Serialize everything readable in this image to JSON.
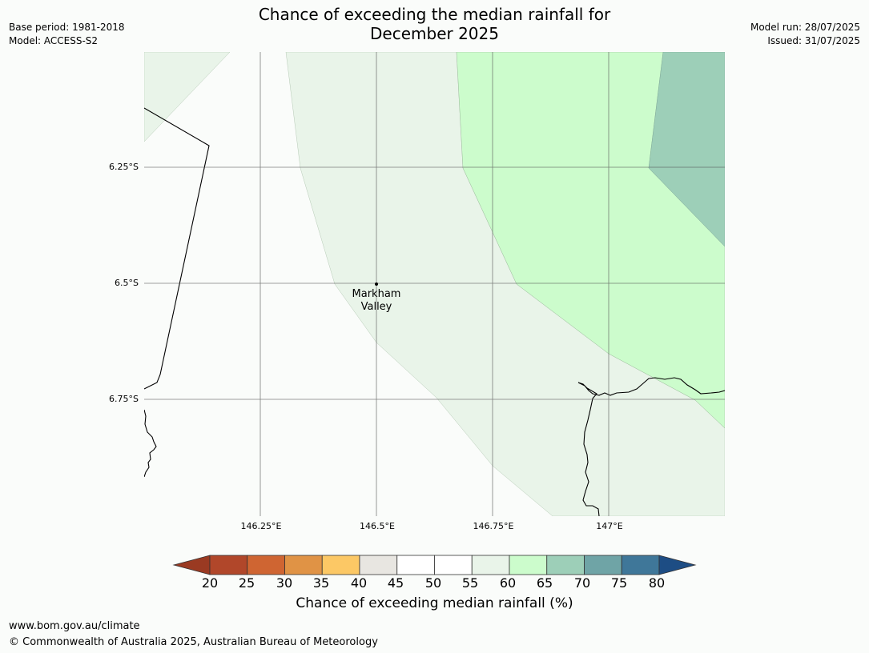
{
  "header": {
    "title_line1": "Chance of exceeding the median rainfall for",
    "title_line2": "December 2025",
    "base_period": "Base period: 1981-2018",
    "model": "Model: ACCESS-S2",
    "model_run": "Model run: 28/07/2025",
    "issued": "Issued: 31/07/2025"
  },
  "map": {
    "lat_labels": [
      "6.25°S",
      "6.5°S",
      "6.75°S"
    ],
    "lon_labels": [
      "146.25°E",
      "146.5°E",
      "146.75°E",
      "147°E"
    ],
    "place": {
      "name_line1": "Markham",
      "name_line2": "Valley"
    },
    "colors": {
      "background": "#fafcfa",
      "band_55_60": "#e9f4e9",
      "band_60_65": "#ccfccc",
      "band_65_70": "#9dcfb8",
      "gridline": "#555555",
      "coastline": "#000000"
    }
  },
  "colorbar": {
    "ticks": [
      "20",
      "25",
      "30",
      "35",
      "40",
      "45",
      "50",
      "55",
      "60",
      "65",
      "70",
      "75",
      "80"
    ],
    "colors": [
      "#b1472a",
      "#cf6532",
      "#e09345",
      "#fcc865",
      "#e8e6e1",
      "#ffffff",
      "#ffffff",
      "#e9f4e9",
      "#ccfccc",
      "#9dcfb8",
      "#6fa4a6",
      "#3f7799"
    ],
    "under_color": "#9a3a22",
    "over_color": "#1d4d84",
    "label": "Chance of exceeding median rainfall (%)"
  },
  "footer": {
    "website": "www.bom.gov.au/climate",
    "copyright": "© Commonwealth of Australia 2025, Australian Bureau of Meteorology"
  }
}
